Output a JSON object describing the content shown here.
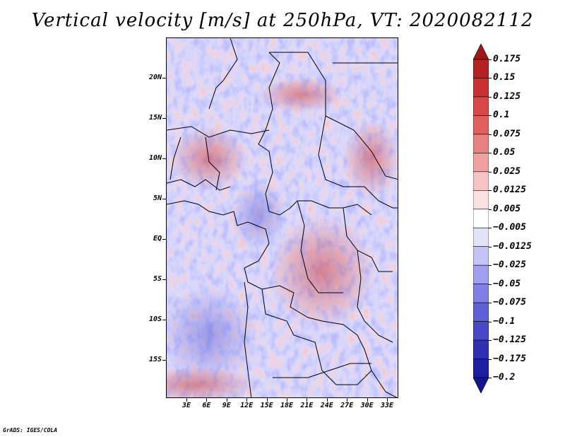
{
  "title": "Vertical velocity [m/s] at 250hPa, VT: 2020082112",
  "credit": "GrADS: IGES/COLA",
  "map": {
    "lat_labels": [
      "20N",
      "15N",
      "10N",
      "5N",
      "EQ",
      "5S",
      "10S",
      "15S"
    ],
    "lon_labels": [
      "3E",
      "6E",
      "9E",
      "12E",
      "15E",
      "18E",
      "21E",
      "24E",
      "27E",
      "30E",
      "33E"
    ]
  },
  "colorbar": {
    "labels": [
      "0.175",
      "0.15",
      "0.125",
      "0.1",
      "0.075",
      "0.05",
      "0.025",
      "0.0125",
      "0.005",
      "−0.005",
      "−0.0125",
      "−0.025",
      "−0.05",
      "−0.075",
      "−0.1",
      "−0.125",
      "−0.175",
      "−0.2"
    ],
    "colors": [
      "#9e1a1a",
      "#b52020",
      "#c83232",
      "#d84848",
      "#e06060",
      "#e88080",
      "#f0a0a0",
      "#f6c4c4",
      "#fbe2e2",
      "#ffffff",
      "#e2e2fb",
      "#c4c4f6",
      "#a0a0ee",
      "#8080e6",
      "#6060d8",
      "#4848c8",
      "#3030b4",
      "#1e1ea0",
      "#14148c"
    ]
  }
}
